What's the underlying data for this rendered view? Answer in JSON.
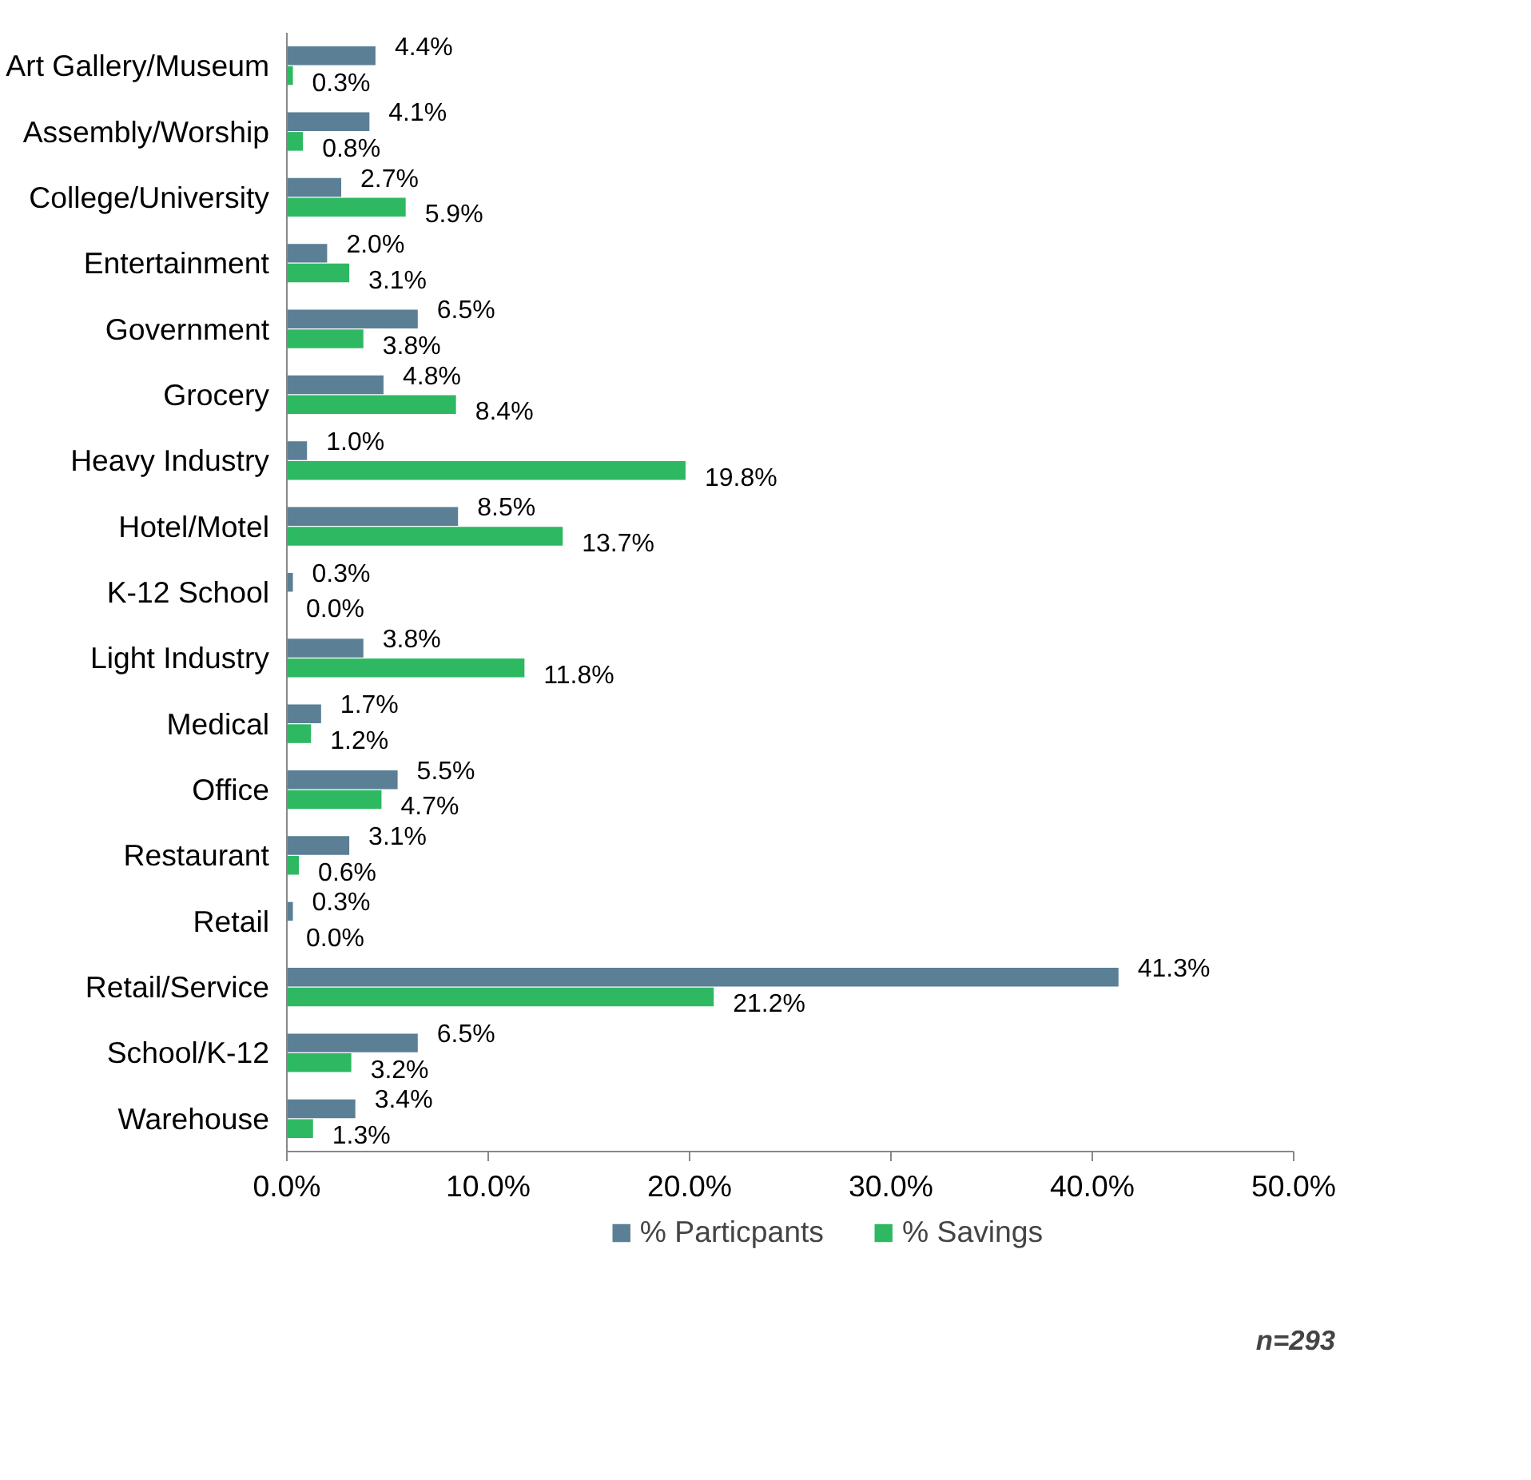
{
  "chart_data": {
    "type": "bar",
    "orientation": "horizontal",
    "categories": [
      "Art Gallery/Museum",
      "Assembly/Worship",
      "College/University",
      "Entertainment",
      "Government",
      "Grocery",
      "Heavy Industry",
      "Hotel/Motel",
      "K-12 School",
      "Light Industry",
      "Medical",
      "Office",
      "Restaurant",
      "Retail",
      "Retail/Service",
      "School/K-12",
      "Warehouse"
    ],
    "series": [
      {
        "name": "% Particpants",
        "color": "#5b7f95",
        "values": [
          4.4,
          4.1,
          2.7,
          2.0,
          6.5,
          4.8,
          1.0,
          8.5,
          0.3,
          3.8,
          1.7,
          5.5,
          3.1,
          0.3,
          41.3,
          6.5,
          3.4
        ],
        "value_labels": [
          "4.4%",
          "4.1%",
          "2.7%",
          "2.0%",
          "6.5%",
          "4.8%",
          "1.0%",
          "8.5%",
          "0.3%",
          "3.8%",
          "1.7%",
          "5.5%",
          "3.1%",
          "0.3%",
          "41.3%",
          "6.5%",
          "3.4%"
        ]
      },
      {
        "name": "% Savings",
        "color": "#2eb862",
        "values": [
          0.3,
          0.8,
          5.9,
          3.1,
          3.8,
          8.4,
          19.8,
          13.7,
          0.0,
          11.8,
          1.2,
          4.7,
          0.6,
          0.0,
          21.2,
          3.2,
          1.3
        ],
        "value_labels": [
          "0.3%",
          "0.8%",
          "5.9%",
          "3.1%",
          "3.8%",
          "8.4%",
          "19.8%",
          "13.7%",
          "0.0%",
          "11.8%",
          "1.2%",
          "4.7%",
          "0.6%",
          "0.0%",
          "21.2%",
          "3.2%",
          "1.3%"
        ]
      }
    ],
    "xlim": [
      0,
      50
    ],
    "xticks": [
      {
        "value": 0,
        "label": "0.0%"
      },
      {
        "value": 10,
        "label": "10.0%"
      },
      {
        "value": 20,
        "label": "20.0%"
      },
      {
        "value": 30,
        "label": "30.0%"
      },
      {
        "value": 40,
        "label": "40.0%"
      },
      {
        "value": 50,
        "label": "50.0%"
      }
    ],
    "grid": false,
    "legend": "bottom",
    "annotations": [
      "n=293"
    ]
  }
}
